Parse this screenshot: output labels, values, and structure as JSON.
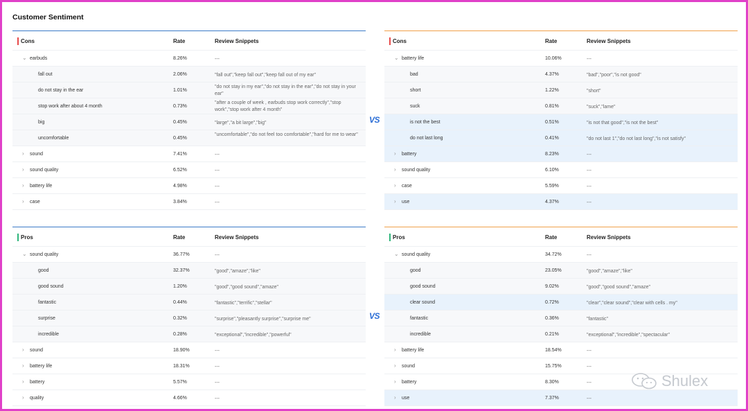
{
  "page_title": "Customer Sentiment",
  "columns": {
    "rate": "Rate",
    "snippets": "Review Snippets"
  },
  "vs_label": "VS",
  "watermark": "Shulex",
  "colors": {
    "cons_accent": "#e84a4a",
    "pros_accent": "#2fb67c",
    "left_line": "#3b7ac7",
    "right_line": "#f0a04a",
    "highlight": "#e8f2fc"
  },
  "panels": {
    "left_cons": {
      "title": "Cons",
      "rows": [
        {
          "name": "earbuds",
          "rate": "8.26%",
          "snip": "---",
          "level": "top",
          "expanded": true
        },
        {
          "name": "fall out",
          "rate": "2.06%",
          "snip": "\"fall out\",\"keep fall out\",\"keep fall out of my ear\"",
          "level": "sub"
        },
        {
          "name": "do not stay in the ear",
          "rate": "1.01%",
          "snip": "\"do not stay in my ear\",\"do not stay in the ear\",\"do not stay in your ear\"",
          "level": "sub",
          "two": true
        },
        {
          "name": "stop work after about 4 month",
          "rate": "0.73%",
          "snip": "\"after a couple of week , earbuds stop work correctly\",\"stop work\",\"stop work after 4 month\"",
          "level": "sub",
          "two": true
        },
        {
          "name": "big",
          "rate": "0.45%",
          "snip": "\"large\",\"a bit large\",\"big\"",
          "level": "sub"
        },
        {
          "name": "uncomfortable",
          "rate": "0.45%",
          "snip": "\"uncomfortable\",\"do not feel too comfortable\",\"hard for me to wear\"",
          "level": "sub",
          "two": true
        },
        {
          "name": "sound",
          "rate": "7.41%",
          "snip": "---",
          "level": "top"
        },
        {
          "name": "sound quality",
          "rate": "6.52%",
          "snip": "---",
          "level": "top"
        },
        {
          "name": "battery life",
          "rate": "4.98%",
          "snip": "---",
          "level": "top"
        },
        {
          "name": "case",
          "rate": "3.84%",
          "snip": "---",
          "level": "top"
        }
      ]
    },
    "right_cons": {
      "title": "Cons",
      "rows": [
        {
          "name": "battery life",
          "rate": "10.06%",
          "snip": "---",
          "level": "top",
          "expanded": true
        },
        {
          "name": "bad",
          "rate": "4.37%",
          "snip": "\"bad\",\"poor\",\"is not good\"",
          "level": "sub"
        },
        {
          "name": "short",
          "rate": "1.22%",
          "snip": "\"short\"",
          "level": "sub"
        },
        {
          "name": "suck",
          "rate": "0.81%",
          "snip": "\"suck\",\"lame\"",
          "level": "sub"
        },
        {
          "name": "is not the best",
          "rate": "0.51%",
          "snip": "\"is not that good\",\"is not the best\"",
          "level": "sub",
          "hl": true
        },
        {
          "name": "do not last long",
          "rate": "0.41%",
          "snip": "\"do not last 1\",\"do not last long\",\"is not satisfy\"",
          "level": "sub",
          "hl": true
        },
        {
          "name": "battery",
          "rate": "8.23%",
          "snip": "---",
          "level": "top",
          "hl": true
        },
        {
          "name": "sound quality",
          "rate": "6.10%",
          "snip": "---",
          "level": "top"
        },
        {
          "name": "case",
          "rate": "5.59%",
          "snip": "---",
          "level": "top"
        },
        {
          "name": "use",
          "rate": "4.37%",
          "snip": "---",
          "level": "top",
          "hl": true
        }
      ]
    },
    "left_pros": {
      "title": "Pros",
      "rows": [
        {
          "name": "sound quality",
          "rate": "36.77%",
          "snip": "---",
          "level": "top",
          "expanded": true
        },
        {
          "name": "good",
          "rate": "32.37%",
          "snip": "\"good\",\"amaze\",\"like\"",
          "level": "sub"
        },
        {
          "name": "good sound",
          "rate": "1.20%",
          "snip": "\"good\",\"good sound\",\"amaze\"",
          "level": "sub"
        },
        {
          "name": "fantastic",
          "rate": "0.44%",
          "snip": "\"fantastic\",\"terrific\",\"stellar\"",
          "level": "sub"
        },
        {
          "name": "surprise",
          "rate": "0.32%",
          "snip": "\"surprise\",\"pleasantly surprise\",\"surprise me\"",
          "level": "sub"
        },
        {
          "name": "incredible",
          "rate": "0.28%",
          "snip": "\"exceptional\",\"incredible\",\"powerful\"",
          "level": "sub"
        },
        {
          "name": "sound",
          "rate": "18.90%",
          "snip": "---",
          "level": "top"
        },
        {
          "name": "battery life",
          "rate": "18.31%",
          "snip": "---",
          "level": "top"
        },
        {
          "name": "battery",
          "rate": "5.57%",
          "snip": "---",
          "level": "top"
        },
        {
          "name": "quality",
          "rate": "4.66%",
          "snip": "---",
          "level": "top"
        }
      ]
    },
    "right_pros": {
      "title": "Pros",
      "rows": [
        {
          "name": "sound quality",
          "rate": "34.72%",
          "snip": "---",
          "level": "top",
          "expanded": true
        },
        {
          "name": "good",
          "rate": "23.05%",
          "snip": "\"good\",\"amaze\",\"like\"",
          "level": "sub"
        },
        {
          "name": "good sound",
          "rate": "9.02%",
          "snip": "\"good\",\"good sound\",\"amaze\"",
          "level": "sub"
        },
        {
          "name": "clear sound",
          "rate": "0.72%",
          "snip": "\"clear\",\"clear sound\",\"clear with cells . my\"",
          "level": "sub",
          "hl": true
        },
        {
          "name": "fantastic",
          "rate": "0.36%",
          "snip": "\"fantastic\"",
          "level": "sub"
        },
        {
          "name": "incredible",
          "rate": "0.21%",
          "snip": "\"exceptional\",\"incredible\",\"spectacular\"",
          "level": "sub"
        },
        {
          "name": "battery life",
          "rate": "18.54%",
          "snip": "---",
          "level": "top"
        },
        {
          "name": "sound",
          "rate": "15.75%",
          "snip": "---",
          "level": "top"
        },
        {
          "name": "battery",
          "rate": "8.30%",
          "snip": "---",
          "level": "top"
        },
        {
          "name": "use",
          "rate": "7.37%",
          "snip": "---",
          "level": "top",
          "hl": true
        }
      ]
    }
  }
}
